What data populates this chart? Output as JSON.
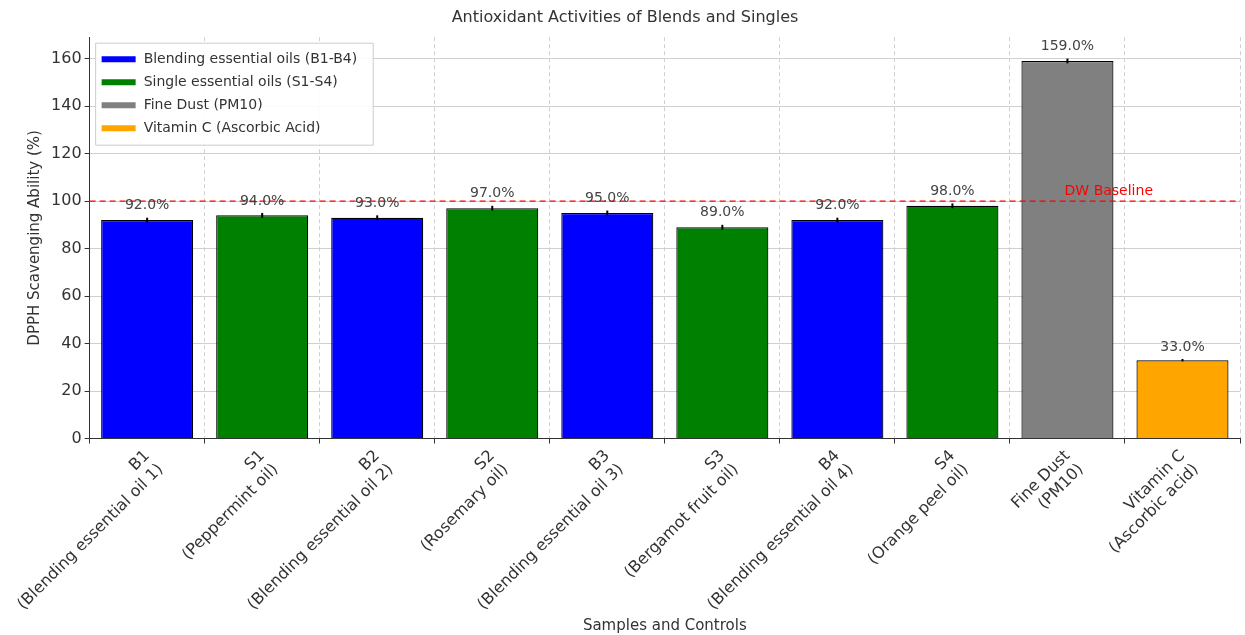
{
  "chart_data": {
    "type": "bar",
    "title": "Antioxidant Activities of Blends and Singles",
    "xlabel": "Samples and Controls",
    "ylabel": "DPPH Scavenging Ability (%)",
    "categories": [
      "B1\n(Blending essential oil 1)",
      "S1\n(Peppermint oil)",
      "B2\n(Blending essential oil 2)",
      "S2\n(Rosemary oil)",
      "B3\n(Blending essential oil 3)",
      "S3\n(Bergamot fruit oil)",
      "B4\n(Blending essential oil 4)",
      "S4\n(Orange peel oil)",
      "Fine Dust\n(PM10)",
      "Vitamin C\n(Ascorbic acid)"
    ],
    "series": [
      {
        "name": "Blending essential oils (B1-B4)",
        "color": "#0000ff",
        "values": [
          92,
          null,
          93,
          null,
          95,
          null,
          92,
          null,
          null,
          null
        ],
        "errors": [
          1,
          null,
          1,
          null,
          1,
          null,
          1,
          null,
          null,
          null
        ],
        "value_labels": [
          "92.0%",
          null,
          "93.0%",
          null,
          "95.0%",
          null,
          "92.0%",
          null,
          null,
          null
        ]
      },
      {
        "name": "Single essential oils (S1-S4)",
        "color": "#008000",
        "values": [
          null,
          94,
          null,
          97,
          null,
          89,
          null,
          98,
          null,
          null
        ],
        "errors": [
          null,
          1,
          null,
          1,
          null,
          1,
          null,
          1,
          null,
          null
        ],
        "value_labels": [
          null,
          "94.0%",
          null,
          "97.0%",
          null,
          "89.0%",
          null,
          "98.0%",
          null,
          null
        ]
      },
      {
        "name": "Fine Dust (PM10)",
        "color": "#808080",
        "values": [
          null,
          null,
          null,
          null,
          null,
          null,
          null,
          null,
          159,
          null
        ],
        "errors": [
          null,
          null,
          null,
          null,
          null,
          null,
          null,
          null,
          1,
          null
        ],
        "value_labels": [
          null,
          null,
          null,
          null,
          null,
          null,
          null,
          null,
          "159.0%",
          null
        ]
      },
      {
        "name": "Vitamin C (Ascorbic Acid)",
        "color": "#ffa500",
        "values": [
          null,
          null,
          null,
          null,
          null,
          null,
          null,
          null,
          null,
          33
        ],
        "errors": [
          null,
          null,
          null,
          null,
          null,
          null,
          null,
          null,
          null,
          0.5
        ],
        "value_labels": [
          null,
          null,
          null,
          null,
          null,
          null,
          null,
          null,
          null,
          "33.0%"
        ]
      }
    ],
    "ylim": [
      0,
      169
    ],
    "yticks": [
      0,
      20,
      40,
      60,
      80,
      100,
      120,
      140,
      160
    ],
    "ref_lines": [
      {
        "axis": "y",
        "value": 100,
        "label": "DW Baseline",
        "color": "#ff0000",
        "line_style": "dashed"
      }
    ],
    "grid": true,
    "legend": "top left"
  }
}
